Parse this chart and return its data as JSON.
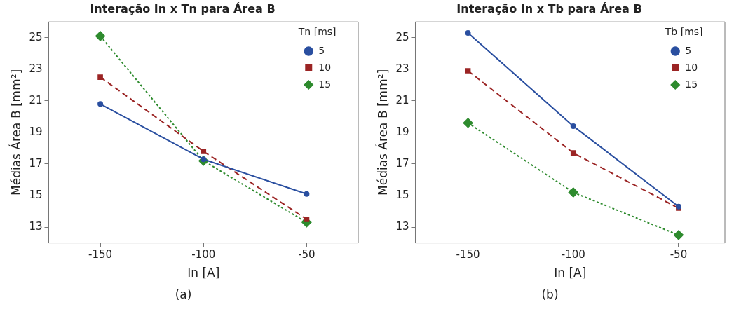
{
  "chart_data": [
    {
      "type": "line",
      "title": "Interação In x Tn para Área B",
      "xlabel": "In [A]",
      "ylabel": "Médias Área B [mm²]",
      "legend_title": "Tn [ms]",
      "legend": "top right",
      "grid": false,
      "x": [
        -150,
        -100,
        -50
      ],
      "xlim": [
        -175,
        -25
      ],
      "xticks": [
        -150,
        -100,
        -50
      ],
      "ylim": [
        12,
        26
      ],
      "yticks": [
        13,
        15,
        17,
        19,
        21,
        23,
        25
      ],
      "annotations": [
        "(a)"
      ],
      "series": [
        {
          "name": "5",
          "color": "#2a4fa0",
          "marker": "circle",
          "line_style": "solid",
          "values": [
            20.8,
            17.3,
            15.1
          ]
        },
        {
          "name": "10",
          "color": "#9b2424",
          "marker": "square",
          "line_style": "dashed",
          "values": [
            22.5,
            17.8,
            13.5
          ]
        },
        {
          "name": "15",
          "color": "#2e8b2e",
          "marker": "diamond",
          "line_style": "dotted",
          "values": [
            25.1,
            17.2,
            13.3
          ]
        }
      ]
    },
    {
      "type": "line",
      "title": "Interação In x Tb para Área B",
      "xlabel": "In [A]",
      "ylabel": "Médias Área B [mm²]",
      "legend_title": "Tb [ms]",
      "legend": "top right",
      "grid": false,
      "x": [
        -150,
        -100,
        -50
      ],
      "xlim": [
        -175,
        -28
      ],
      "xticks": [
        -150,
        -100,
        -50
      ],
      "ylim": [
        12,
        26
      ],
      "yticks": [
        13,
        15,
        17,
        19,
        21,
        23,
        25
      ],
      "annotations": [
        "(b)"
      ],
      "series": [
        {
          "name": "5",
          "color": "#2a4fa0",
          "marker": "circle",
          "line_style": "solid",
          "values": [
            25.3,
            19.4,
            14.3
          ]
        },
        {
          "name": "10",
          "color": "#9b2424",
          "marker": "square",
          "line_style": "dashed",
          "values": [
            22.9,
            17.7,
            14.2
          ]
        },
        {
          "name": "15",
          "color": "#2e8b2e",
          "marker": "diamond",
          "line_style": "dotted",
          "values": [
            19.6,
            15.2,
            12.5
          ]
        }
      ]
    }
  ]
}
